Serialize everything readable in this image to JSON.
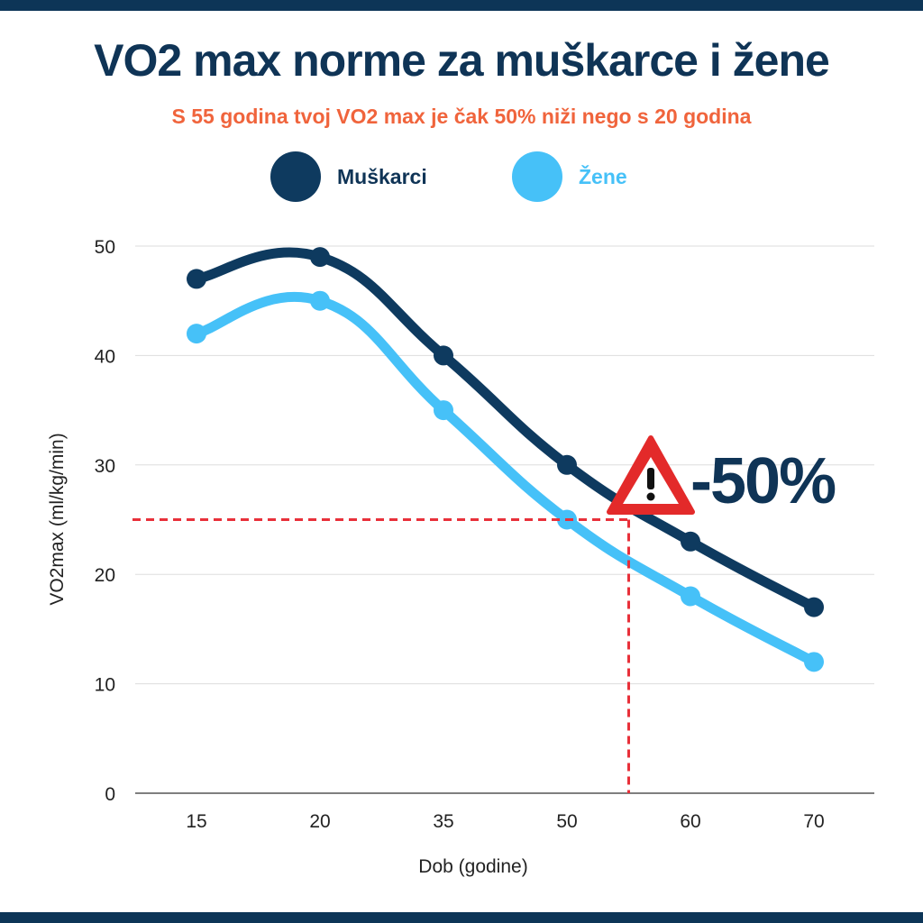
{
  "colors": {
    "frame": "#0d3557",
    "title": "#0f3456",
    "subtitle": "#f0643c",
    "men": "#0e3a5f",
    "women": "#46c1f8",
    "reference": "#e8303a",
    "grid": "#dddddd"
  },
  "title": "VO2 max norme za muškarce i žene",
  "subtitle": "S 55 godina tvoj VO2 max je čak 50% niži nego s 20 godina",
  "legend": {
    "men": "Muškarci",
    "women": "Žene"
  },
  "annotation": {
    "icon": "warning-triangle-icon",
    "text": "-50%"
  },
  "chart_data": {
    "type": "line",
    "categories": [
      "15",
      "20",
      "35",
      "50",
      "60",
      "70"
    ],
    "series": [
      {
        "name": "Muškarci",
        "values": [
          47,
          49,
          40,
          30,
          23,
          17
        ]
      },
      {
        "name": "Žene",
        "values": [
          42,
          45,
          35,
          25,
          18,
          12
        ]
      }
    ],
    "xlabel": "Dob (godine)",
    "ylabel": "VO2max (ml/kg/min)",
    "ylim": [
      0,
      50
    ],
    "yticks": [
      0,
      10,
      20,
      30,
      40,
      50
    ],
    "grid": true,
    "legend_position": "top-center",
    "reference_lines": {
      "y_value": 25,
      "x_value": 55
    }
  }
}
